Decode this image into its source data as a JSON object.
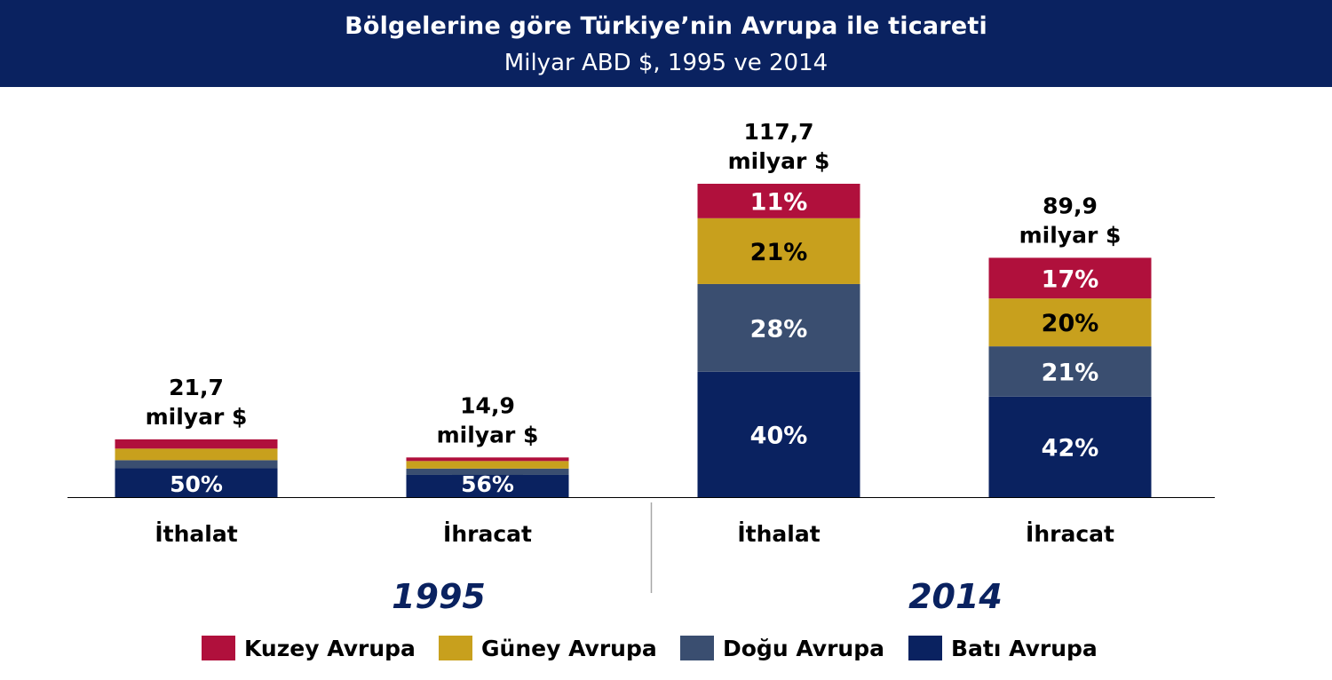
{
  "chart_data": {
    "type": "bar",
    "stacked": true,
    "title": "Bölgelerine göre Türkiye’nin Avrupa ile ticareti",
    "subtitle": "Milyar ABD $, 1995 ve 2014",
    "groups": [
      {
        "label": "1995",
        "categories": [
          "İthalat",
          "İhracat"
        ]
      },
      {
        "label": "2014",
        "categories": [
          "İthalat",
          "İhracat"
        ]
      }
    ],
    "bars": [
      {
        "group": "1995",
        "category": "İthalat",
        "total": 21.7,
        "total_label": [
          "21,7",
          "milyar $"
        ],
        "shares": [
          50,
          14,
          20,
          16
        ],
        "share_labels": [
          "50%",
          "",
          "",
          ""
        ]
      },
      {
        "group": "1995",
        "category": "İhracat",
        "total": 14.9,
        "total_label": [
          "14,9",
          "milyar $"
        ],
        "shares": [
          56,
          16,
          19,
          9
        ],
        "share_labels": [
          "56%",
          "",
          "",
          ""
        ]
      },
      {
        "group": "2014",
        "category": "İthalat",
        "total": 117.7,
        "total_label": [
          "117,7",
          "milyar $"
        ],
        "shares": [
          40,
          28,
          21,
          11
        ],
        "share_labels": [
          "40%",
          "28%",
          "21%",
          "11%"
        ]
      },
      {
        "group": "2014",
        "category": "İhracat",
        "total": 89.9,
        "total_label": [
          "89,9",
          "milyar $"
        ],
        "shares": [
          42,
          21,
          20,
          17
        ],
        "share_labels": [
          "42%",
          "21%",
          "20%",
          "17%"
        ]
      }
    ],
    "series": [
      {
        "name": "Batı Avrupa",
        "color": "#0a2260"
      },
      {
        "name": "Doğu Avrupa",
        "color": "#3a4e70"
      },
      {
        "name": "Güney Avrupa",
        "color": "#c8a01d"
      },
      {
        "name": "Kuzey Avrupa",
        "color": "#b0103c"
      }
    ],
    "legend_order": [
      "Kuzey Avrupa",
      "Güney Avrupa",
      "Doğu Avrupa",
      "Batı Avrupa"
    ],
    "label_colors": {
      "Batı Avrupa": "#ffffff",
      "Doğu Avrupa": "#ffffff",
      "Güney Avrupa": "#000000",
      "Kuzey Avrupa": "#ffffff"
    },
    "ylim": [
      0,
      117.7
    ],
    "year_label_color": "#0a2260"
  }
}
